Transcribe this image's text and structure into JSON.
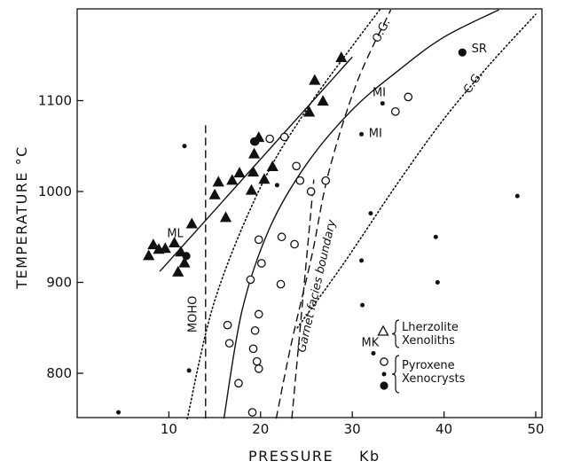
{
  "chart_data": {
    "type": "scatter",
    "title": "",
    "xlabel": "PRESSURE",
    "xunit": "Kb",
    "ylabel": "TEMPERATURE °C",
    "xlim": [
      0,
      50
    ],
    "ylim": [
      750,
      1200
    ],
    "x_ticks": [
      "10",
      "20",
      "30",
      "40",
      "50"
    ],
    "y_ticks": [
      "800",
      "900",
      "1000",
      "1100"
    ],
    "grid": false,
    "legend_position": "bottom-right",
    "legend": [
      {
        "marker": "open-triangle",
        "brace_text": [
          "Lherzolite",
          "Xenoliths"
        ]
      },
      {
        "marker": "open-circle",
        "brace_text": [
          "Pyroxene",
          "Xenocrysts"
        ]
      },
      {
        "marker": "small-dot"
      },
      {
        "marker": "filled-circle"
      }
    ],
    "series": [
      {
        "marker": "filled-triangle",
        "points": [
          [
            7.8,
            930
          ],
          [
            8.3,
            942
          ],
          [
            8.9,
            937
          ],
          [
            9.6,
            938
          ],
          [
            10.6,
            944
          ],
          [
            11.0,
            912
          ],
          [
            11.3,
            934
          ],
          [
            11.7,
            922
          ],
          [
            12.5,
            965
          ],
          [
            16.2,
            972
          ],
          [
            15.0,
            997
          ],
          [
            15.4,
            1011
          ],
          [
            16.9,
            1013
          ],
          [
            17.7,
            1021
          ],
          [
            19.0,
            1002
          ],
          [
            19.2,
            1022
          ],
          [
            19.3,
            1042
          ],
          [
            19.8,
            1060
          ],
          [
            20.4,
            1014
          ],
          [
            21.3,
            1028
          ],
          [
            25.3,
            1088
          ],
          [
            25.9,
            1123
          ],
          [
            26.8,
            1100
          ],
          [
            28.8,
            1148
          ]
        ]
      },
      {
        "marker": "open-circle",
        "points": [
          [
            19.4,
            1055
          ],
          [
            21.0,
            1058
          ],
          [
            22.6,
            1060
          ],
          [
            23.9,
            1028
          ],
          [
            24.3,
            1012
          ],
          [
            25.5,
            1000
          ],
          [
            27.1,
            1012
          ],
          [
            22.3,
            950
          ],
          [
            23.7,
            942
          ],
          [
            19.8,
            947
          ],
          [
            20.1,
            921
          ],
          [
            18.9,
            903
          ],
          [
            22.2,
            898
          ],
          [
            16.4,
            853
          ],
          [
            16.6,
            833
          ],
          [
            19.8,
            865
          ],
          [
            19.4,
            847
          ],
          [
            19.2,
            827
          ],
          [
            19.6,
            813
          ],
          [
            19.8,
            805
          ],
          [
            17.6,
            789
          ],
          [
            19.1,
            757
          ],
          [
            34.7,
            1088
          ],
          [
            36.1,
            1104
          ]
        ]
      },
      {
        "marker": "small-dot",
        "points": [
          [
            4.5,
            757
          ],
          [
            11.7,
            1050
          ],
          [
            12.2,
            803
          ],
          [
            21.8,
            1007
          ],
          [
            32.0,
            976
          ],
          [
            31.0,
            924
          ],
          [
            31.1,
            875
          ],
          [
            32.3,
            822
          ],
          [
            39.1,
            950
          ],
          [
            39.3,
            900
          ],
          [
            33.3,
            1097
          ],
          [
            31.0,
            1063
          ],
          [
            48.0,
            995
          ]
        ]
      },
      {
        "marker": "filled-circle",
        "points": [
          [
            19.3,
            1055
          ],
          [
            11.9,
            929
          ],
          [
            42.0,
            1153
          ]
        ]
      }
    ],
    "lines": [
      {
        "name": "regression",
        "style": "solid",
        "points": [
          [
            9.0,
            912
          ],
          [
            30.0,
            1148
          ]
        ]
      },
      {
        "name": "O.G.",
        "style": "dotted",
        "points": [
          [
            12.0,
            750
          ],
          [
            15.0,
            880
          ],
          [
            20.0,
            1005
          ],
          [
            25.0,
            1090
          ],
          [
            30.0,
            1160
          ],
          [
            33.0,
            1200
          ]
        ]
      },
      {
        "name": "pyroxene",
        "style": "solid",
        "points": [
          [
            16.0,
            750
          ],
          [
            18.0,
            870
          ],
          [
            21.0,
            960
          ],
          [
            25.0,
            1030
          ],
          [
            30.0,
            1090
          ],
          [
            35.0,
            1133
          ],
          [
            40.0,
            1170
          ],
          [
            46.0,
            1200
          ]
        ]
      },
      {
        "name": "C.G.",
        "style": "dotted",
        "points": [
          [
            24.0,
            850
          ],
          [
            29.0,
            920
          ],
          [
            35.0,
            1010
          ],
          [
            40.0,
            1080
          ],
          [
            45.0,
            1140
          ],
          [
            50.0,
            1195
          ]
        ]
      },
      {
        "name": "MOHO",
        "style": "dashed",
        "points": [
          [
            14.0,
            750
          ],
          [
            14.0,
            1073
          ]
        ]
      },
      {
        "name": "garnet-facies",
        "style": "dashed",
        "points": [
          [
            21.7,
            750
          ],
          [
            23.4,
            835
          ],
          [
            25.6,
            930
          ],
          [
            27.4,
            1020
          ],
          [
            30.5,
            1120
          ],
          [
            34.2,
            1200
          ]
        ]
      },
      {
        "name": "garnet-lower",
        "style": "dashed",
        "points": [
          [
            23.4,
            750
          ],
          [
            25.8,
            1013
          ]
        ]
      }
    ],
    "annotations": [
      {
        "text": "ML",
        "x": 9.8,
        "y": 950
      },
      {
        "text": "SR",
        "x": 43.0,
        "y": 1153
      },
      {
        "text": "MI",
        "x": 32.2,
        "y": 1105
      },
      {
        "text": "MI",
        "x": 31.8,
        "y": 1060
      },
      {
        "text": "MK",
        "x": 31.0,
        "y": 830
      },
      {
        "text": "O.G.",
        "x": 33.5,
        "y": 1175,
        "rotate": -62
      },
      {
        "text": "C.G.",
        "x": 43.5,
        "y": 1118,
        "rotate": -55
      },
      {
        "text": "MOHO",
        "x": 13.0,
        "y": 865,
        "rotate": -90
      },
      {
        "text": "Garnet  facies  boundary",
        "x": 26.5,
        "y": 895,
        "rotate": -77,
        "italic": true
      }
    ]
  }
}
